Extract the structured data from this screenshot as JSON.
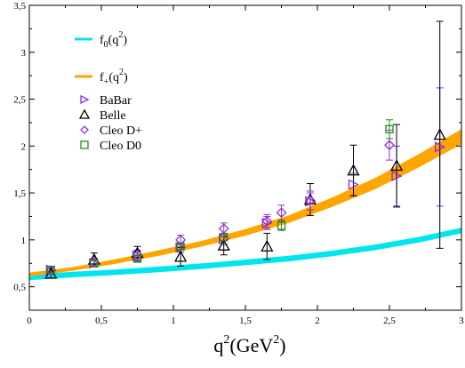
{
  "chart_data": {
    "type": "scatter",
    "title": "",
    "xlabel": "q",
    "xlabel_sup": "2",
    "xlabel_unit": "(GeV",
    "xlabel_unit_sup": "2",
    "xlabel_tail": ")",
    "ylabel": "",
    "xlim": [
      0,
      3
    ],
    "ylim": [
      0.25,
      3.5
    ],
    "x_ticks": [
      0,
      0.5,
      1,
      1.5,
      2,
      2.5,
      3
    ],
    "x_tick_labels": [
      "0",
      "0,5",
      "1",
      "1,5",
      "2",
      "2,5",
      "3"
    ],
    "y_ticks": [
      0.5,
      1,
      1.5,
      2,
      2.5,
      3,
      3.5
    ],
    "y_tick_labels": [
      "0,5",
      "1",
      "1,5",
      "2",
      "2,5",
      "3",
      "3,5"
    ],
    "grid": false,
    "legend_position": "top-left",
    "bands": [
      {
        "name": "f0(q2)",
        "label_base": "f",
        "label_sub": "0",
        "label_arg": "(q",
        "label_arg_sup": "2",
        "label_tail": ")",
        "color": "#00e5ee",
        "x": [
          0,
          0.3,
          0.6,
          0.9,
          1.2,
          1.5,
          1.8,
          2.1,
          2.4,
          2.7,
          3.0
        ],
        "center": [
          0.6,
          0.63,
          0.655,
          0.685,
          0.72,
          0.76,
          0.8,
          0.855,
          0.92,
          1.0,
          1.1
        ],
        "half_width": 0.03
      },
      {
        "name": "f+(q2)",
        "label_base": "f",
        "label_sub": "+",
        "label_arg": "(q",
        "label_arg_sup": "2",
        "label_tail": ")",
        "color": "#ffa500",
        "x": [
          0,
          0.3,
          0.6,
          0.9,
          1.2,
          1.5,
          1.8,
          2.1,
          2.4,
          2.7,
          3.0
        ],
        "center": [
          0.63,
          0.69,
          0.77,
          0.86,
          0.96,
          1.08,
          1.22,
          1.4,
          1.6,
          1.84,
          2.1
        ],
        "half_width": [
          0.02,
          0.02,
          0.025,
          0.03,
          0.03,
          0.035,
          0.04,
          0.05,
          0.06,
          0.07,
          0.08
        ]
      }
    ],
    "series": [
      {
        "name": "BaBar",
        "marker": "triangle-right",
        "color": "#8a2be2",
        "x": [
          0.15,
          0.45,
          0.75,
          1.05,
          1.35,
          1.65,
          1.95,
          2.25,
          2.55,
          2.85
        ],
        "y": [
          0.68,
          0.75,
          0.83,
          0.92,
          1.01,
          1.18,
          1.41,
          1.59,
          1.68,
          1.99
        ],
        "err": [
          0.04,
          0.04,
          0.05,
          0.05,
          0.06,
          0.07,
          0.09,
          0.12,
          0.32,
          0.63
        ]
      },
      {
        "name": "Belle",
        "marker": "triangle-up",
        "color": "#000000",
        "x": [
          0.15,
          0.45,
          0.75,
          1.05,
          1.35,
          1.65,
          1.95,
          2.25,
          2.55,
          2.85
        ],
        "y": [
          0.64,
          0.79,
          0.86,
          0.82,
          0.94,
          0.93,
          1.43,
          1.74,
          1.79,
          2.12
        ],
        "err": [
          0.05,
          0.07,
          0.07,
          0.1,
          0.1,
          0.14,
          0.17,
          0.27,
          0.44,
          1.21
        ]
      },
      {
        "name": "Cleo D+",
        "marker": "diamond",
        "color": "#9932cc",
        "x": [
          0.15,
          0.45,
          0.75,
          1.05,
          1.35,
          1.65,
          1.75,
          1.95,
          2.5
        ],
        "y": [
          0.67,
          0.76,
          0.84,
          1.0,
          1.12,
          1.2,
          1.29,
          1.42,
          2.01
        ],
        "err": [
          0.04,
          0.04,
          0.05,
          0.05,
          0.06,
          0.07,
          0.08,
          0.1,
          0.16
        ]
      },
      {
        "name": "Cleo D0",
        "marker": "square",
        "color": "#1a8f1a",
        "x": [
          0.15,
          0.45,
          0.75,
          1.05,
          1.35,
          1.75,
          2.5
        ],
        "y": [
          0.68,
          0.75,
          0.8,
          0.93,
          1.03,
          1.15,
          2.18
        ],
        "err": [
          0.03,
          0.03,
          0.03,
          0.03,
          0.04,
          0.05,
          0.1
        ]
      }
    ]
  }
}
